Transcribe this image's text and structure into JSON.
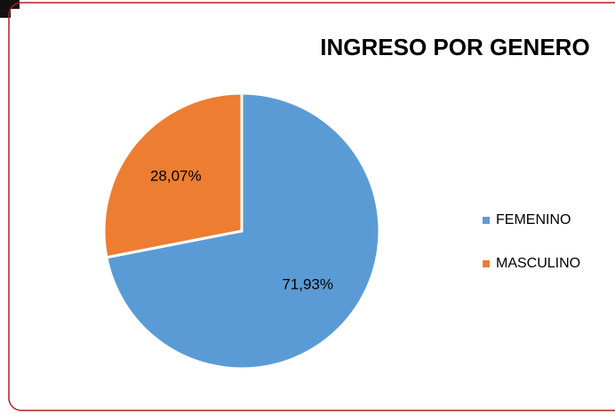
{
  "chart_data": {
    "type": "pie",
    "title": "INGRESO POR GENERO",
    "categories": [
      "FEMENINO",
      "MASCULINO"
    ],
    "values": [
      71.93,
      28.07
    ],
    "value_labels": [
      "71,93%",
      "28,07%"
    ],
    "colors": [
      "#5b9bd5",
      "#ed7d31"
    ],
    "legend": "right"
  }
}
